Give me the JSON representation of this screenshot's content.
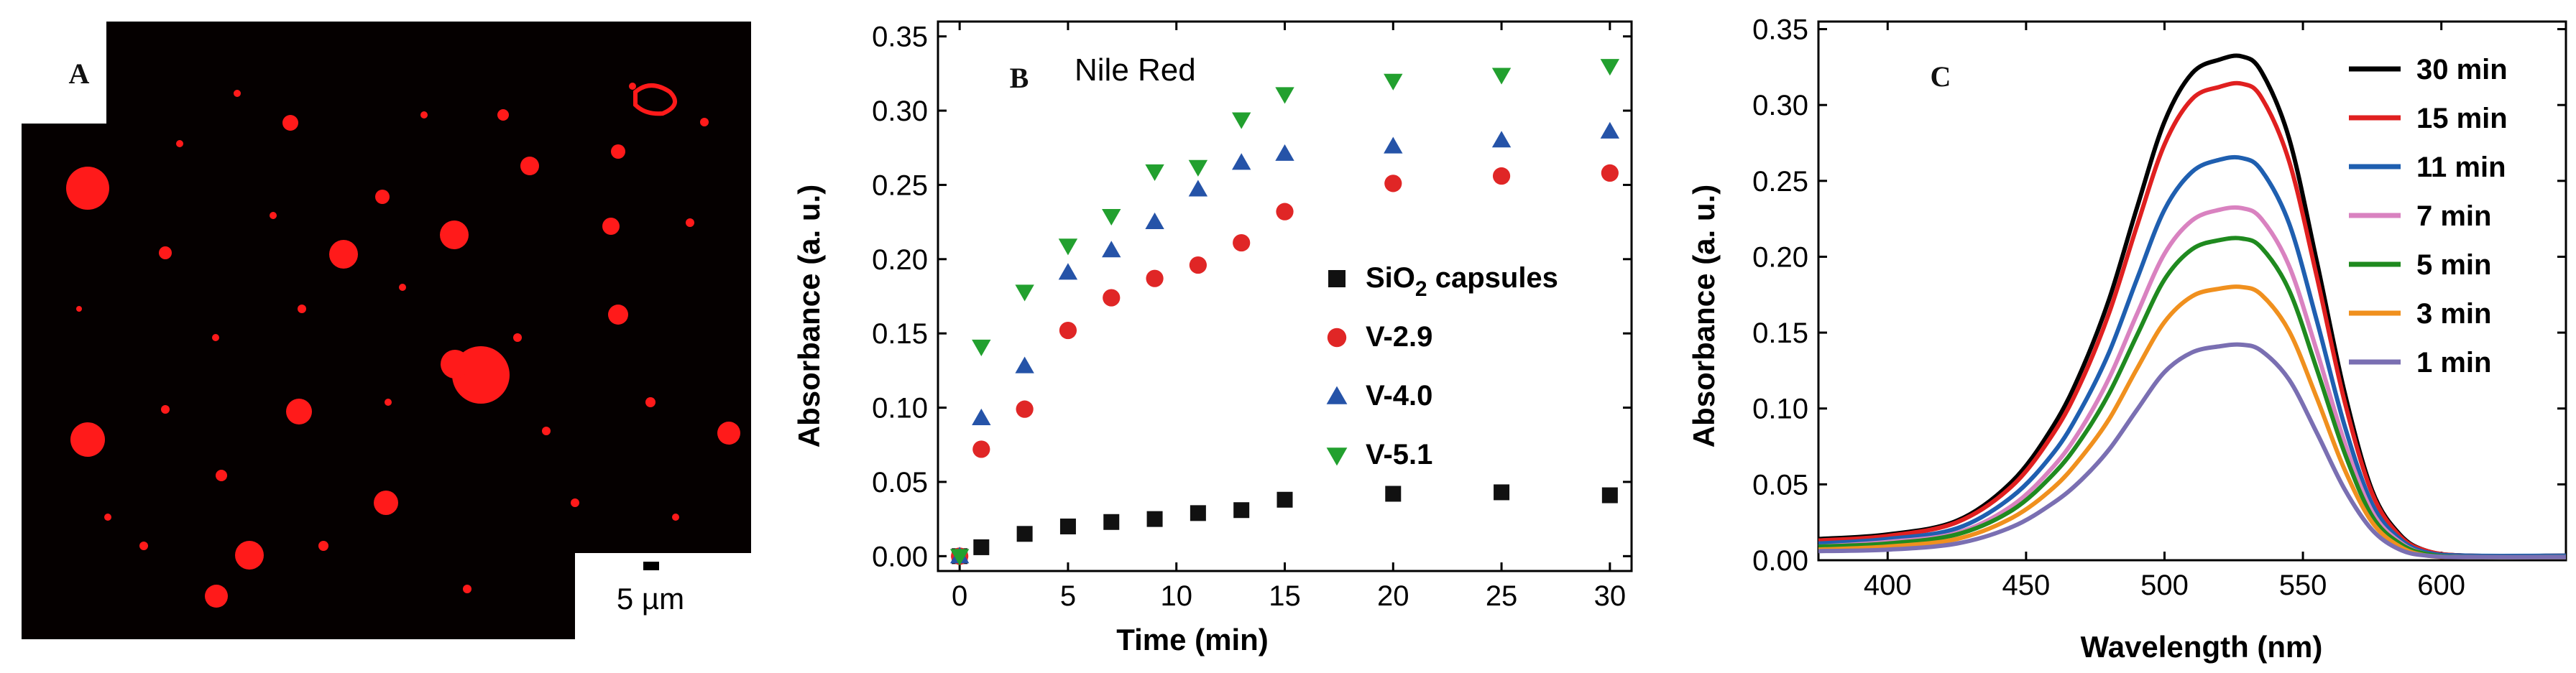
{
  "panels": {
    "a": {
      "label": "A",
      "scale_bar_text": "5 µm",
      "image_kind": "fluorescence-micrograph",
      "colors": {
        "background": "#050000",
        "droplet": "#ff1a1a"
      }
    },
    "b": {
      "label": "B"
    },
    "c": {
      "label": "C"
    }
  },
  "chart_data": [
    {
      "type": "scatter",
      "panel": "B",
      "title": "Nile Red",
      "xlabel": "Time (min)",
      "ylabel": "Absorbance (a. u.)",
      "xlim": [
        -1,
        31
      ],
      "ylim": [
        -0.01,
        0.36
      ],
      "xticks": [
        0,
        5,
        10,
        15,
        20,
        25,
        30
      ],
      "yticks": [
        "0.00",
        "0.05",
        "0.10",
        "0.15",
        "0.20",
        "0.25",
        "0.30",
        "0.35"
      ],
      "legend_position": "center-right",
      "series": [
        {
          "name": "SiO",
          "name_subscript": "2",
          "name_suffix": " capsules",
          "marker": "square",
          "color": "#111111",
          "x": [
            0,
            1,
            3,
            5,
            7,
            9,
            11,
            13,
            15,
            20,
            25,
            30
          ],
          "y": [
            0.0,
            0.006,
            0.015,
            0.02,
            0.023,
            0.025,
            0.029,
            0.031,
            0.038,
            0.042,
            0.043,
            0.041
          ]
        },
        {
          "name": "V-2.9",
          "marker": "circle",
          "color": "#e02626",
          "x": [
            0,
            1,
            3,
            5,
            7,
            9,
            11,
            13,
            15,
            20,
            25,
            30
          ],
          "y": [
            0.0,
            0.072,
            0.099,
            0.152,
            0.174,
            0.187,
            0.196,
            0.211,
            0.232,
            0.251,
            0.256,
            0.258
          ]
        },
        {
          "name": "V-4.0",
          "marker": "triangle-up",
          "color": "#2553a8",
          "x": [
            0,
            1,
            3,
            5,
            7,
            9,
            11,
            13,
            15,
            20,
            25,
            30
          ],
          "y": [
            0.0,
            0.093,
            0.128,
            0.191,
            0.206,
            0.225,
            0.247,
            0.265,
            0.271,
            0.276,
            0.28,
            0.286
          ]
        },
        {
          "name": "V-5.1",
          "marker": "triangle-down",
          "color": "#22a02f",
          "x": [
            0,
            1,
            3,
            5,
            7,
            9,
            11,
            13,
            15,
            20,
            25,
            30
          ],
          "y": [
            0.0,
            0.141,
            0.178,
            0.209,
            0.229,
            0.259,
            0.262,
            0.294,
            0.311,
            0.32,
            0.324,
            0.33
          ]
        }
      ]
    },
    {
      "type": "line",
      "panel": "C",
      "title": "",
      "xlabel": "Wavelength (nm)",
      "ylabel": "Absorbance (a. u.)",
      "xlim": [
        375,
        645
      ],
      "ylim": [
        0.0,
        0.355
      ],
      "xticks": [
        400,
        450,
        500,
        550,
        600
      ],
      "yticks": [
        "0.00",
        "0.05",
        "0.10",
        "0.15",
        "0.20",
        "0.25",
        "0.30",
        "0.35"
      ],
      "legend_position": "top-right",
      "x": [
        375,
        400,
        425,
        445,
        460,
        470,
        480,
        490,
        500,
        510,
        520,
        528,
        535,
        545,
        555,
        565,
        575,
        585,
        595,
        610,
        645
      ],
      "series": [
        {
          "name": "30 min",
          "color": "#000000",
          "peak": 0.332,
          "y": [
            0.014,
            0.017,
            0.026,
            0.052,
            0.089,
            0.125,
            0.172,
            0.232,
            0.289,
            0.321,
            0.33,
            0.332,
            0.322,
            0.278,
            0.197,
            0.111,
            0.046,
            0.017,
            0.006,
            0.003,
            0.003
          ]
        },
        {
          "name": "15 min",
          "color": "#e02020",
          "peak": 0.314,
          "y": [
            0.013,
            0.016,
            0.025,
            0.049,
            0.084,
            0.118,
            0.163,
            0.22,
            0.274,
            0.304,
            0.312,
            0.314,
            0.305,
            0.263,
            0.187,
            0.105,
            0.044,
            0.016,
            0.006,
            0.003,
            0.003
          ]
        },
        {
          "name": "11 min",
          "color": "#1f5fb0",
          "peak": 0.265,
          "y": [
            0.011,
            0.014,
            0.021,
            0.042,
            0.071,
            0.1,
            0.137,
            0.185,
            0.231,
            0.256,
            0.264,
            0.265,
            0.257,
            0.222,
            0.158,
            0.089,
            0.037,
            0.014,
            0.005,
            0.003,
            0.003
          ]
        },
        {
          "name": "7 min",
          "color": "#d982c0",
          "peak": 0.232,
          "y": [
            0.009,
            0.012,
            0.018,
            0.036,
            0.062,
            0.087,
            0.12,
            0.162,
            0.202,
            0.224,
            0.231,
            0.232,
            0.225,
            0.194,
            0.138,
            0.078,
            0.032,
            0.012,
            0.004,
            0.002,
            0.002
          ]
        },
        {
          "name": "5 min",
          "color": "#1f8a1f",
          "peak": 0.212,
          "y": [
            0.009,
            0.011,
            0.017,
            0.033,
            0.057,
            0.08,
            0.11,
            0.148,
            0.185,
            0.205,
            0.211,
            0.212,
            0.206,
            0.178,
            0.126,
            0.071,
            0.029,
            0.011,
            0.004,
            0.002,
            0.002
          ]
        },
        {
          "name": "3 min",
          "color": "#f0901e",
          "peak": 0.18,
          "y": [
            0.007,
            0.009,
            0.014,
            0.028,
            0.048,
            0.068,
            0.093,
            0.126,
            0.157,
            0.174,
            0.179,
            0.18,
            0.175,
            0.151,
            0.107,
            0.06,
            0.025,
            0.009,
            0.003,
            0.002,
            0.002
          ]
        },
        {
          "name": "1 min",
          "color": "#7a6fb2",
          "peak": 0.142,
          "y": [
            0.006,
            0.007,
            0.011,
            0.022,
            0.038,
            0.053,
            0.073,
            0.099,
            0.124,
            0.137,
            0.141,
            0.142,
            0.138,
            0.119,
            0.084,
            0.047,
            0.02,
            0.007,
            0.003,
            0.002,
            0.002
          ]
        }
      ]
    }
  ]
}
